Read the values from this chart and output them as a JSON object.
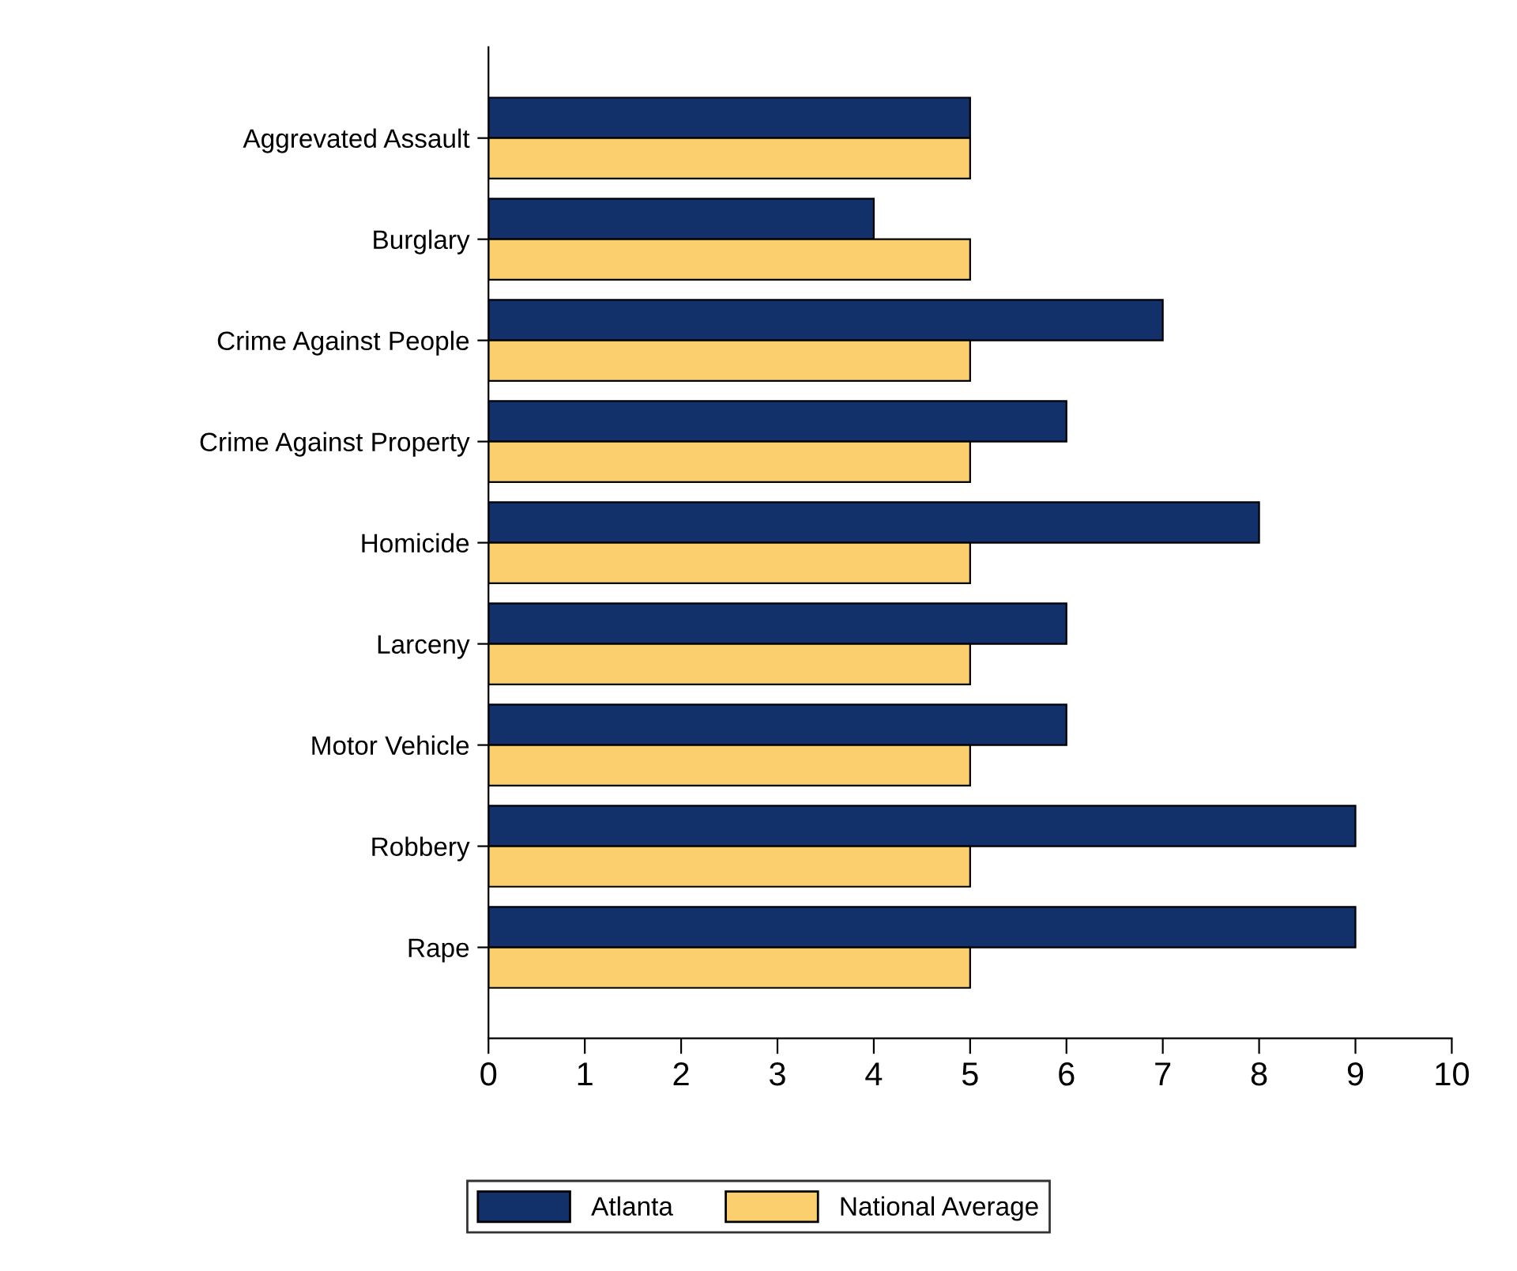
{
  "chart_data": {
    "type": "bar",
    "orientation": "horizontal",
    "categories": [
      "Aggrevated Assault",
      "Burglary",
      "Crime Against People",
      "Crime Against Property",
      "Homicide",
      "Larceny",
      "Motor Vehicle",
      "Robbery",
      "Rape"
    ],
    "series": [
      {
        "name": "Atlanta",
        "color": "#12306a",
        "values": [
          5,
          4,
          7,
          6,
          8,
          6,
          6,
          9,
          9
        ]
      },
      {
        "name": "National Average",
        "color": "#fccf6e",
        "values": [
          5,
          5,
          5,
          5,
          5,
          5,
          5,
          5,
          5
        ]
      }
    ],
    "xlim": [
      0,
      10
    ],
    "xticks": [
      0,
      1,
      2,
      3,
      4,
      5,
      6,
      7,
      8,
      9,
      10
    ],
    "grid": false,
    "legend": "bottom"
  }
}
